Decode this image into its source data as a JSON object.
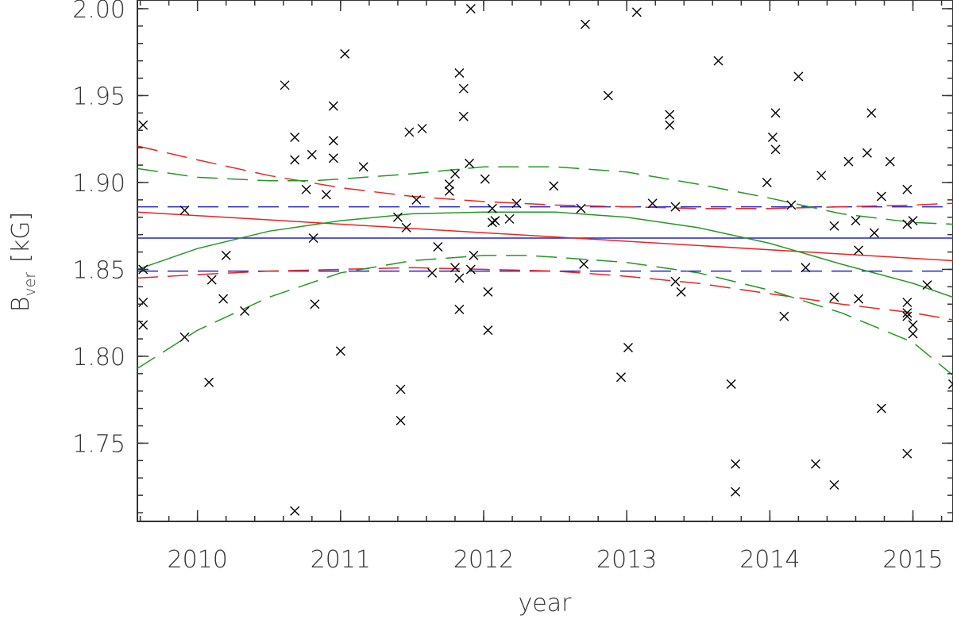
{
  "chart_data": {
    "type": "scatter",
    "title": "",
    "xlabel": "year",
    "ylabel": {
      "main": "B",
      "subscript": "ver",
      "unit": "[kG]"
    },
    "xlim": [
      2009.58,
      2015.28
    ],
    "ylim": [
      1.705,
      2.005
    ],
    "xticks": [
      {
        "value": 2010,
        "label": "2010"
      },
      {
        "value": 2011,
        "label": "2011"
      },
      {
        "value": 2012,
        "label": "2012"
      },
      {
        "value": 2013,
        "label": "2013"
      },
      {
        "value": 2014,
        "label": "2014"
      },
      {
        "value": 2015,
        "label": "2015"
      }
    ],
    "yticks": [
      {
        "value": 1.75,
        "label": "1.75"
      },
      {
        "value": 1.8,
        "label": "1.80"
      },
      {
        "value": 1.85,
        "label": "1.85"
      },
      {
        "value": 1.9,
        "label": "1.90"
      },
      {
        "value": 1.95,
        "label": "1.95"
      },
      {
        "value": 2.0,
        "label": "2.00"
      }
    ],
    "colors": {
      "axis": "#333333",
      "markers": "#000000",
      "constant": "#2222cc",
      "linear": "#ee2222",
      "quadratic": "#229922"
    },
    "points": [
      [
        2009.62,
        1.933
      ],
      [
        2009.62,
        1.85
      ],
      [
        2009.62,
        1.831
      ],
      [
        2009.62,
        1.818
      ],
      [
        2009.91,
        1.884
      ],
      [
        2009.91,
        1.811
      ],
      [
        2010.08,
        1.785
      ],
      [
        2010.1,
        1.844
      ],
      [
        2010.18,
        1.833
      ],
      [
        2010.2,
        1.858
      ],
      [
        2010.33,
        1.826
      ],
      [
        2010.61,
        1.956
      ],
      [
        2010.68,
        1.926
      ],
      [
        2010.68,
        1.913
      ],
      [
        2010.68,
        1.711
      ],
      [
        2010.76,
        1.896
      ],
      [
        2010.8,
        1.916
      ],
      [
        2010.81,
        1.868
      ],
      [
        2010.82,
        1.83
      ],
      [
        2010.9,
        1.893
      ],
      [
        2010.95,
        1.944
      ],
      [
        2010.95,
        1.924
      ],
      [
        2010.95,
        1.914
      ],
      [
        2011.0,
        1.803
      ],
      [
        2011.03,
        1.974
      ],
      [
        2011.16,
        1.909
      ],
      [
        2011.4,
        1.88
      ],
      [
        2011.42,
        1.781
      ],
      [
        2011.42,
        1.763
      ],
      [
        2011.46,
        1.874
      ],
      [
        2011.48,
        1.929
      ],
      [
        2011.53,
        1.89
      ],
      [
        2011.57,
        1.931
      ],
      [
        2011.64,
        1.848
      ],
      [
        2011.68,
        1.863
      ],
      [
        2011.76,
        1.899
      ],
      [
        2011.76,
        1.895
      ],
      [
        2011.8,
        1.905
      ],
      [
        2011.8,
        1.851
      ],
      [
        2011.83,
        1.963
      ],
      [
        2011.83,
        1.845
      ],
      [
        2011.83,
        1.827
      ],
      [
        2011.86,
        1.954
      ],
      [
        2011.86,
        1.938
      ],
      [
        2011.9,
        1.911
      ],
      [
        2011.91,
        2.0
      ],
      [
        2011.91,
        1.85
      ],
      [
        2011.93,
        1.858
      ],
      [
        2012.01,
        1.902
      ],
      [
        2012.03,
        1.837
      ],
      [
        2012.03,
        1.815
      ],
      [
        2012.06,
        1.885
      ],
      [
        2012.06,
        1.877
      ],
      [
        2012.08,
        1.878
      ],
      [
        2012.18,
        1.879
      ],
      [
        2012.23,
        1.888
      ],
      [
        2012.49,
        1.898
      ],
      [
        2012.68,
        1.885
      ],
      [
        2012.7,
        1.853
      ],
      [
        2012.71,
        1.991
      ],
      [
        2012.87,
        1.95
      ],
      [
        2012.96,
        1.788
      ],
      [
        2013.01,
        1.805
      ],
      [
        2013.07,
        1.998
      ],
      [
        2013.18,
        1.888
      ],
      [
        2013.3,
        1.939
      ],
      [
        2013.3,
        1.933
      ],
      [
        2013.34,
        1.886
      ],
      [
        2013.34,
        1.843
      ],
      [
        2013.38,
        1.837
      ],
      [
        2013.64,
        1.97
      ],
      [
        2013.73,
        1.784
      ],
      [
        2013.76,
        1.738
      ],
      [
        2013.76,
        1.722
      ],
      [
        2013.98,
        1.9
      ],
      [
        2014.02,
        1.926
      ],
      [
        2014.04,
        1.94
      ],
      [
        2014.04,
        1.919
      ],
      [
        2014.1,
        1.823
      ],
      [
        2014.15,
        1.887
      ],
      [
        2014.2,
        1.961
      ],
      [
        2014.25,
        1.851
      ],
      [
        2014.32,
        1.738
      ],
      [
        2014.36,
        1.904
      ],
      [
        2014.45,
        1.875
      ],
      [
        2014.45,
        1.834
      ],
      [
        2014.45,
        1.726
      ],
      [
        2014.55,
        1.912
      ],
      [
        2014.6,
        1.878
      ],
      [
        2014.62,
        1.861
      ],
      [
        2014.62,
        1.833
      ],
      [
        2014.68,
        1.917
      ],
      [
        2014.71,
        1.94
      ],
      [
        2014.73,
        1.871
      ],
      [
        2014.78,
        1.892
      ],
      [
        2014.78,
        1.77
      ],
      [
        2014.84,
        1.912
      ],
      [
        2014.96,
        1.896
      ],
      [
        2014.96,
        1.876
      ],
      [
        2014.96,
        1.831
      ],
      [
        2014.96,
        1.825
      ],
      [
        2014.96,
        1.823
      ],
      [
        2014.96,
        1.744
      ],
      [
        2015.0,
        1.878
      ],
      [
        2015.0,
        1.818
      ],
      [
        2015.0,
        1.813
      ],
      [
        2015.1,
        1.841
      ],
      [
        2015.28,
        1.784
      ]
    ],
    "curves": [
      {
        "id": "constant-fit",
        "color": "#2222cc",
        "dash": "none",
        "x": [
          2009.58,
          2015.28
        ],
        "y": [
          1.868,
          1.868
        ]
      },
      {
        "id": "constant-upper",
        "color": "#2222cc",
        "dash": "26 12",
        "x": [
          2009.58,
          2015.28
        ],
        "y": [
          1.886,
          1.886
        ]
      },
      {
        "id": "constant-lower",
        "color": "#2222cc",
        "dash": "26 12",
        "x": [
          2009.58,
          2015.28
        ],
        "y": [
          1.849,
          1.849
        ]
      },
      {
        "id": "linear-fit",
        "color": "#ee2222",
        "dash": "none",
        "x": [
          2009.58,
          2015.28
        ],
        "y": [
          1.883,
          1.855
        ]
      },
      {
        "id": "linear-upper",
        "color": "#ee2222",
        "dash": "26 12",
        "x": [
          2009.58,
          2010.0,
          2010.5,
          2011.0,
          2011.5,
          2012.0,
          2012.5,
          2013.0,
          2013.5,
          2014.0,
          2014.5,
          2015.0,
          2015.28
        ],
        "y": [
          1.921,
          1.913,
          1.904,
          1.897,
          1.892,
          1.889,
          1.887,
          1.886,
          1.885,
          1.885,
          1.886,
          1.887,
          1.888
        ]
      },
      {
        "id": "linear-lower",
        "color": "#ee2222",
        "dash": "26 12",
        "x": [
          2009.58,
          2010.0,
          2010.5,
          2011.0,
          2011.5,
          2012.0,
          2012.5,
          2013.0,
          2013.5,
          2014.0,
          2014.5,
          2015.0,
          2015.28
        ],
        "y": [
          1.845,
          1.847,
          1.849,
          1.85,
          1.851,
          1.85,
          1.849,
          1.846,
          1.842,
          1.836,
          1.83,
          1.825,
          1.821
        ]
      },
      {
        "id": "quadratic-fit",
        "color": "#229922",
        "dash": "none",
        "x": [
          2009.58,
          2010.0,
          2010.5,
          2011.0,
          2011.5,
          2012.0,
          2012.3,
          2012.5,
          2013.0,
          2013.5,
          2014.0,
          2014.5,
          2015.0,
          2015.28
        ],
        "y": [
          1.85,
          1.862,
          1.872,
          1.878,
          1.882,
          1.883,
          1.883,
          1.883,
          1.88,
          1.874,
          1.865,
          1.853,
          1.842,
          1.834
        ]
      },
      {
        "id": "quadratic-upper",
        "color": "#229922",
        "dash": "26 12",
        "x": [
          2009.58,
          2010.0,
          2010.5,
          2010.8,
          2011.0,
          2011.5,
          2012.0,
          2012.3,
          2012.5,
          2013.0,
          2013.5,
          2014.0,
          2014.5,
          2015.0,
          2015.28
        ],
        "y": [
          1.908,
          1.903,
          1.901,
          1.901,
          1.902,
          1.905,
          1.909,
          1.909,
          1.909,
          1.906,
          1.899,
          1.891,
          1.882,
          1.877,
          1.876
        ]
      },
      {
        "id": "quadratic-lower",
        "color": "#229922",
        "dash": "26 12",
        "x": [
          2009.58,
          2010.0,
          2010.5,
          2011.0,
          2011.5,
          2012.0,
          2012.3,
          2012.5,
          2013.0,
          2013.5,
          2014.0,
          2014.5,
          2015.0,
          2015.28
        ],
        "y": [
          1.793,
          1.815,
          1.834,
          1.848,
          1.855,
          1.858,
          1.858,
          1.857,
          1.854,
          1.848,
          1.838,
          1.825,
          1.808,
          1.789
        ]
      }
    ]
  }
}
